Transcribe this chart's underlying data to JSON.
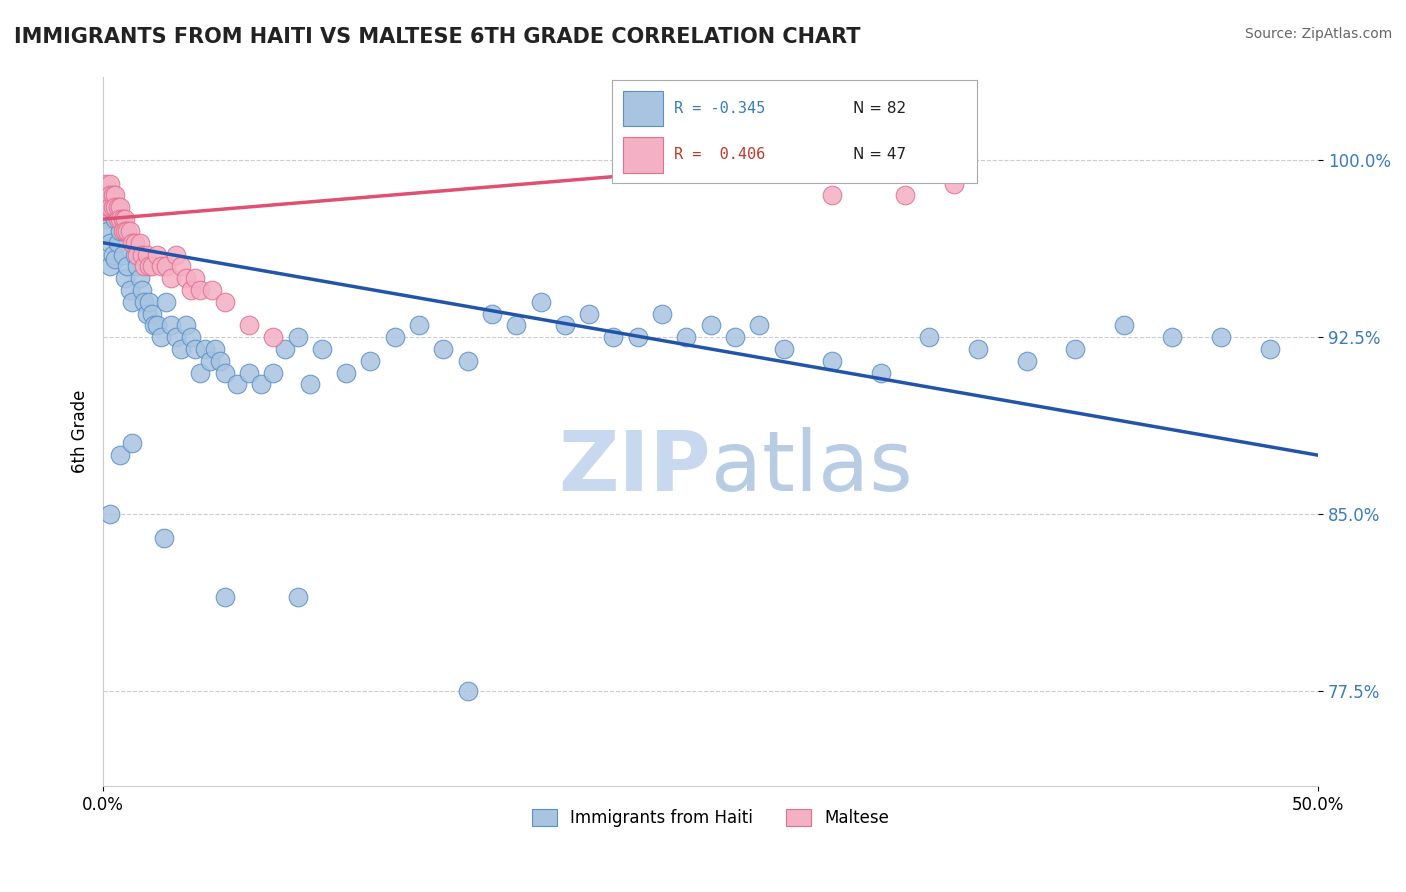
{
  "title": "IMMIGRANTS FROM HAITI VS MALTESE 6TH GRADE CORRELATION CHART",
  "source": "Source: ZipAtlas.com",
  "ylabel": "6th Grade",
  "xlim": [
    0.0,
    0.5
  ],
  "ylim": [
    0.735,
    1.035
  ],
  "blue_scatter_x": [
    0.001,
    0.002,
    0.003,
    0.003,
    0.004,
    0.005,
    0.005,
    0.006,
    0.007,
    0.008,
    0.009,
    0.01,
    0.011,
    0.012,
    0.013,
    0.014,
    0.015,
    0.016,
    0.017,
    0.018,
    0.019,
    0.02,
    0.021,
    0.022,
    0.024,
    0.026,
    0.028,
    0.03,
    0.032,
    0.034,
    0.036,
    0.038,
    0.04,
    0.042,
    0.044,
    0.046,
    0.048,
    0.05,
    0.055,
    0.06,
    0.065,
    0.07,
    0.075,
    0.08,
    0.085,
    0.09,
    0.1,
    0.11,
    0.12,
    0.13,
    0.14,
    0.15,
    0.16,
    0.17,
    0.18,
    0.19,
    0.2,
    0.21,
    0.22,
    0.23,
    0.24,
    0.25,
    0.26,
    0.27,
    0.28,
    0.3,
    0.32,
    0.34,
    0.36,
    0.38,
    0.4,
    0.42,
    0.44,
    0.46,
    0.48,
    0.003,
    0.007,
    0.012,
    0.025,
    0.05,
    0.08,
    0.15
  ],
  "blue_scatter_y": [
    0.975,
    0.97,
    0.965,
    0.955,
    0.96,
    0.975,
    0.958,
    0.965,
    0.97,
    0.96,
    0.95,
    0.955,
    0.945,
    0.94,
    0.96,
    0.955,
    0.95,
    0.945,
    0.94,
    0.935,
    0.94,
    0.935,
    0.93,
    0.93,
    0.925,
    0.94,
    0.93,
    0.925,
    0.92,
    0.93,
    0.925,
    0.92,
    0.91,
    0.92,
    0.915,
    0.92,
    0.915,
    0.91,
    0.905,
    0.91,
    0.905,
    0.91,
    0.92,
    0.925,
    0.905,
    0.92,
    0.91,
    0.915,
    0.925,
    0.93,
    0.92,
    0.915,
    0.935,
    0.93,
    0.94,
    0.93,
    0.935,
    0.925,
    0.925,
    0.935,
    0.925,
    0.93,
    0.925,
    0.93,
    0.92,
    0.915,
    0.91,
    0.925,
    0.92,
    0.915,
    0.92,
    0.93,
    0.925,
    0.925,
    0.92,
    0.85,
    0.875,
    0.88,
    0.84,
    0.815,
    0.815,
    0.775
  ],
  "pink_scatter_x": [
    0.001,
    0.001,
    0.002,
    0.002,
    0.003,
    0.003,
    0.003,
    0.004,
    0.004,
    0.005,
    0.005,
    0.006,
    0.006,
    0.007,
    0.007,
    0.008,
    0.008,
    0.009,
    0.009,
    0.01,
    0.011,
    0.012,
    0.013,
    0.014,
    0.015,
    0.016,
    0.017,
    0.018,
    0.019,
    0.02,
    0.022,
    0.024,
    0.026,
    0.028,
    0.03,
    0.032,
    0.034,
    0.036,
    0.038,
    0.04,
    0.045,
    0.05,
    0.06,
    0.07,
    0.3,
    0.33,
    0.35
  ],
  "pink_scatter_y": [
    0.985,
    0.99,
    0.985,
    0.98,
    0.99,
    0.985,
    0.98,
    0.985,
    0.98,
    0.985,
    0.98,
    0.975,
    0.98,
    0.98,
    0.975,
    0.975,
    0.97,
    0.975,
    0.97,
    0.97,
    0.97,
    0.965,
    0.965,
    0.96,
    0.965,
    0.96,
    0.955,
    0.96,
    0.955,
    0.955,
    0.96,
    0.955,
    0.955,
    0.95,
    0.96,
    0.955,
    0.95,
    0.945,
    0.95,
    0.945,
    0.945,
    0.94,
    0.93,
    0.925,
    0.985,
    0.985,
    0.99
  ],
  "blue_line_x": [
    0.0,
    0.5
  ],
  "blue_line_y": [
    0.965,
    0.875
  ],
  "pink_line_x": [
    0.0,
    0.35
  ],
  "pink_line_y": [
    0.975,
    1.005
  ],
  "marker_size": 180,
  "blue_color": "#a8c4e0",
  "blue_edge_color": "#5b8fc9",
  "pink_color": "#f4b0c4",
  "pink_edge_color": "#e07090",
  "blue_line_color": "#2255aa",
  "pink_line_color": "#e05070",
  "grid_color": "#cccccc",
  "background_color": "#ffffff",
  "watermark_zip_color": "#c8d8ee",
  "watermark_atlas_color": "#b8cce4",
  "legend_label_blue": "Immigrants from Haiti",
  "legend_label_pink": "Maltese",
  "y_tick_positions": [
    0.775,
    0.85,
    0.925,
    1.0
  ],
  "y_tick_labels": [
    "77.5%",
    "85.0%",
    "92.5%",
    "100.0%"
  ],
  "r_blue": "R = -0.345",
  "n_blue": "N = 82",
  "r_pink": "R =  0.406",
  "n_pink": "N = 47"
}
